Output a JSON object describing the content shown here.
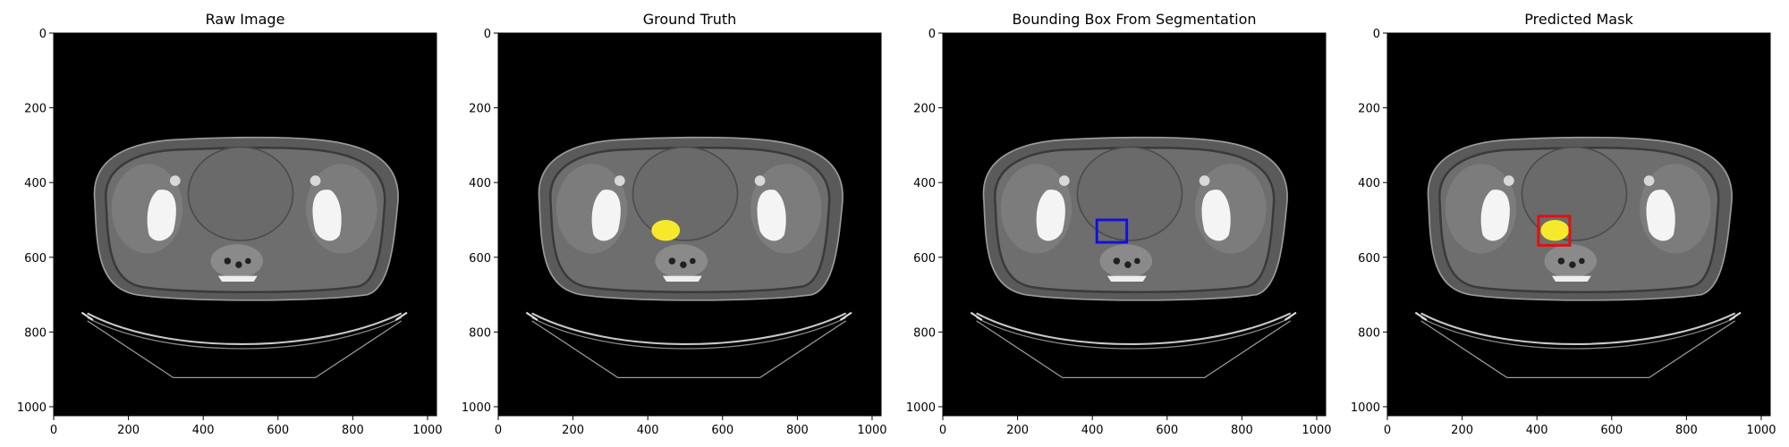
{
  "panels": [
    {
      "title": "Raw Image",
      "overlay": "none"
    },
    {
      "title": "Ground Truth",
      "overlay": "mask"
    },
    {
      "title": "Bounding Box From Segmentation",
      "overlay": "box"
    },
    {
      "title": "Predicted Mask",
      "overlay": "mask+box"
    }
  ],
  "axes": {
    "x_ticks": [
      "0",
      "200",
      "400",
      "600",
      "800",
      "1000"
    ],
    "y_ticks": [
      "0",
      "200",
      "400",
      "600",
      "800",
      "1000"
    ],
    "extent": [
      0,
      1024
    ]
  },
  "annotations": {
    "mask": {
      "cx": 448,
      "cy": 528,
      "rx": 38,
      "ry": 28,
      "color": "#f6e92b"
    },
    "gt_box": {
      "x0": 412,
      "y0": 500,
      "x1": 492,
      "y1": 560,
      "color": "#1010e0"
    },
    "pred_box": {
      "x0": 404,
      "y0": 490,
      "x1": 488,
      "y1": 568,
      "color": "#e01010"
    }
  },
  "colors": {
    "background": "#000000",
    "axis": "#000000"
  }
}
